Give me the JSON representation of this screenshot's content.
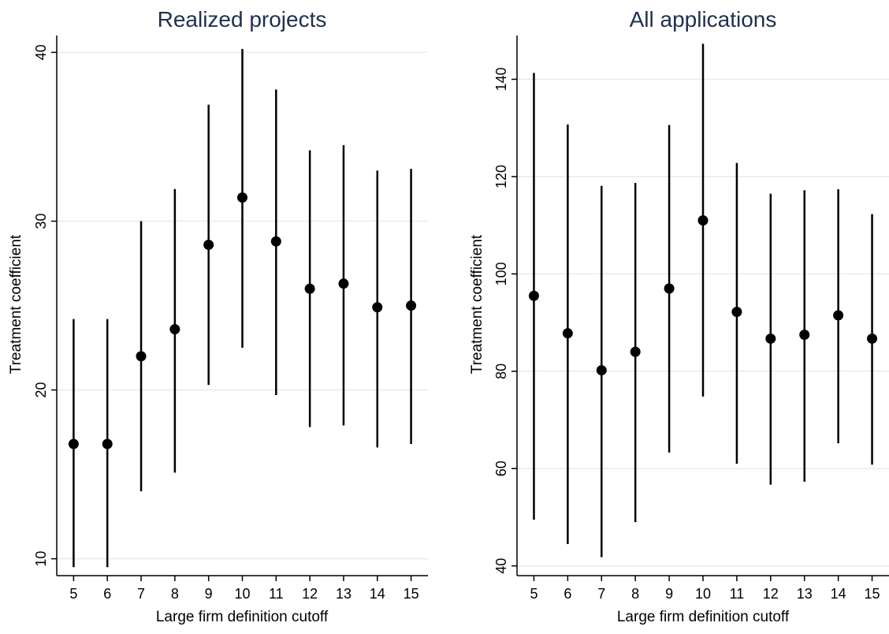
{
  "colors": {
    "title": "#1e3050",
    "marker": "#000000",
    "gridline": "#e4ece9",
    "axis": "#000000",
    "background": "#ffffff"
  },
  "chart_data": [
    {
      "type": "scatter",
      "title": "Realized projects",
      "xlabel": "Large firm definition cutoff",
      "ylabel": "Treatment coefficient",
      "x": [
        5,
        6,
        7,
        8,
        9,
        10,
        11,
        12,
        13,
        14,
        15
      ],
      "x_ticks": [
        "5",
        "6",
        "7",
        "8",
        "9",
        "10",
        "11",
        "12",
        "13",
        "14",
        "15"
      ],
      "xlim": [
        4.5,
        15.5
      ],
      "y_ticks": [
        "10",
        "20",
        "30",
        "40"
      ],
      "ylim": [
        9,
        41
      ],
      "grid": true,
      "series": [
        {
          "values": [
            16.8,
            16.8,
            22.0,
            23.6,
            28.6,
            31.4,
            28.8,
            26.0,
            26.3,
            24.9,
            25.0
          ],
          "lower": [
            9.5,
            9.5,
            14.0,
            15.1,
            20.3,
            22.5,
            19.7,
            17.8,
            17.9,
            16.6,
            16.8
          ],
          "upper": [
            24.2,
            24.2,
            30.0,
            31.9,
            36.9,
            40.2,
            37.8,
            34.2,
            34.5,
            33.0,
            33.1
          ]
        }
      ]
    },
    {
      "type": "scatter",
      "title": "All applications",
      "xlabel": "Large firm definition cutoff",
      "ylabel": "Treatment coefficient",
      "x": [
        5,
        6,
        7,
        8,
        9,
        10,
        11,
        12,
        13,
        14,
        15
      ],
      "x_ticks": [
        "5",
        "6",
        "7",
        "8",
        "9",
        "10",
        "11",
        "12",
        "13",
        "14",
        "15"
      ],
      "xlim": [
        4.5,
        15.5
      ],
      "y_ticks": [
        "40",
        "60",
        "80",
        "100",
        "120",
        "140"
      ],
      "ylim": [
        38,
        149
      ],
      "grid": true,
      "series": [
        {
          "values": [
            95.5,
            87.8,
            80.2,
            84.0,
            97.0,
            111.0,
            92.2,
            86.7,
            87.5,
            91.5,
            86.7
          ],
          "lower": [
            49.5,
            44.5,
            41.8,
            49.0,
            63.3,
            74.8,
            61.0,
            56.7,
            57.3,
            65.2,
            60.8
          ],
          "upper": [
            141.3,
            130.7,
            118.1,
            118.7,
            130.6,
            147.3,
            122.8,
            116.5,
            117.2,
            117.4,
            112.3
          ]
        }
      ]
    }
  ]
}
